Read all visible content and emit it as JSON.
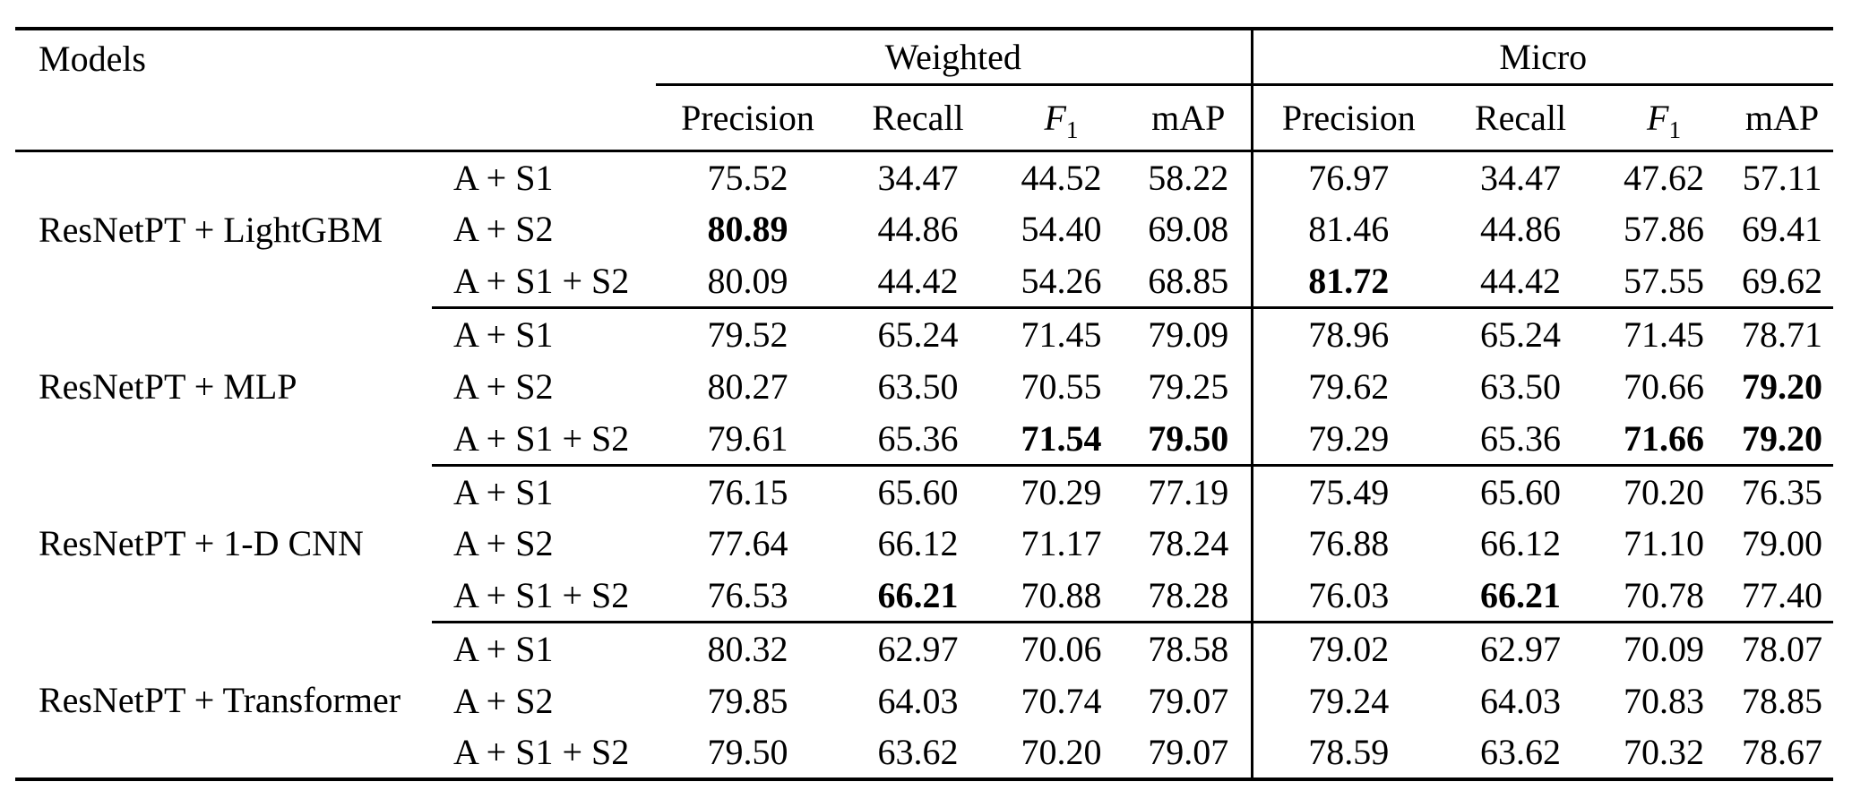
{
  "table": {
    "models_header": "Models",
    "groups": [
      {
        "label": "Weighted"
      },
      {
        "label": "Micro"
      }
    ],
    "metrics": [
      {
        "label": "Precision"
      },
      {
        "label": "Recall"
      },
      {
        "label": "F",
        "sub": "1"
      },
      {
        "label": "mAP"
      }
    ],
    "blocks": [
      {
        "model": "ResNetPT + LightGBM",
        "rows": [
          {
            "selector": "A + S1",
            "weighted": [
              {
                "v": "75.52"
              },
              {
                "v": "34.47"
              },
              {
                "v": "44.52"
              },
              {
                "v": "58.22"
              }
            ],
            "micro": [
              {
                "v": "76.97"
              },
              {
                "v": "34.47"
              },
              {
                "v": "47.62"
              },
              {
                "v": "57.11"
              }
            ]
          },
          {
            "selector": "A + S2",
            "weighted": [
              {
                "v": "80.89",
                "b": true
              },
              {
                "v": "44.86"
              },
              {
                "v": "54.40"
              },
              {
                "v": "69.08"
              }
            ],
            "micro": [
              {
                "v": "81.46"
              },
              {
                "v": "44.86"
              },
              {
                "v": "57.86"
              },
              {
                "v": "69.41"
              }
            ]
          },
          {
            "selector": "A + S1 + S2",
            "weighted": [
              {
                "v": "80.09"
              },
              {
                "v": "44.42"
              },
              {
                "v": "54.26"
              },
              {
                "v": "68.85"
              }
            ],
            "micro": [
              {
                "v": "81.72",
                "b": true
              },
              {
                "v": "44.42"
              },
              {
                "v": "57.55"
              },
              {
                "v": "69.62"
              }
            ]
          }
        ]
      },
      {
        "model": "ResNetPT + MLP",
        "rows": [
          {
            "selector": "A + S1",
            "weighted": [
              {
                "v": "79.52"
              },
              {
                "v": "65.24"
              },
              {
                "v": "71.45"
              },
              {
                "v": "79.09"
              }
            ],
            "micro": [
              {
                "v": "78.96"
              },
              {
                "v": "65.24"
              },
              {
                "v": "71.45"
              },
              {
                "v": "78.71"
              }
            ]
          },
          {
            "selector": "A + S2",
            "weighted": [
              {
                "v": "80.27"
              },
              {
                "v": "63.50"
              },
              {
                "v": "70.55"
              },
              {
                "v": "79.25"
              }
            ],
            "micro": [
              {
                "v": "79.62"
              },
              {
                "v": "63.50"
              },
              {
                "v": "70.66"
              },
              {
                "v": "79.20",
                "b": true
              }
            ]
          },
          {
            "selector": "A + S1 + S2",
            "weighted": [
              {
                "v": "79.61"
              },
              {
                "v": "65.36"
              },
              {
                "v": "71.54",
                "b": true
              },
              {
                "v": "79.50",
                "b": true
              }
            ],
            "micro": [
              {
                "v": "79.29"
              },
              {
                "v": "65.36"
              },
              {
                "v": "71.66",
                "b": true
              },
              {
                "v": "79.20",
                "b": true
              }
            ]
          }
        ]
      },
      {
        "model": "ResNetPT + 1-D CNN",
        "rows": [
          {
            "selector": "A + S1",
            "weighted": [
              {
                "v": "76.15"
              },
              {
                "v": "65.60"
              },
              {
                "v": "70.29"
              },
              {
                "v": "77.19"
              }
            ],
            "micro": [
              {
                "v": "75.49"
              },
              {
                "v": "65.60"
              },
              {
                "v": "70.20"
              },
              {
                "v": "76.35"
              }
            ]
          },
          {
            "selector": "A + S2",
            "weighted": [
              {
                "v": "77.64"
              },
              {
                "v": "66.12"
              },
              {
                "v": "71.17"
              },
              {
                "v": "78.24"
              }
            ],
            "micro": [
              {
                "v": "76.88"
              },
              {
                "v": "66.12"
              },
              {
                "v": "71.10"
              },
              {
                "v": "79.00"
              }
            ]
          },
          {
            "selector": "A + S1 + S2",
            "weighted": [
              {
                "v": "76.53"
              },
              {
                "v": "66.21",
                "b": true
              },
              {
                "v": "70.88"
              },
              {
                "v": "78.28"
              }
            ],
            "micro": [
              {
                "v": "76.03"
              },
              {
                "v": "66.21",
                "b": true
              },
              {
                "v": "70.78"
              },
              {
                "v": "77.40"
              }
            ]
          }
        ]
      },
      {
        "model": "ResNetPT + Transformer",
        "rows": [
          {
            "selector": "A + S1",
            "weighted": [
              {
                "v": "80.32"
              },
              {
                "v": "62.97"
              },
              {
                "v": "70.06"
              },
              {
                "v": "78.58"
              }
            ],
            "micro": [
              {
                "v": "79.02"
              },
              {
                "v": "62.97"
              },
              {
                "v": "70.09"
              },
              {
                "v": "78.07"
              }
            ]
          },
          {
            "selector": "A + S2",
            "weighted": [
              {
                "v": "79.85"
              },
              {
                "v": "64.03"
              },
              {
                "v": "70.74"
              },
              {
                "v": "79.07"
              }
            ],
            "micro": [
              {
                "v": "79.24"
              },
              {
                "v": "64.03"
              },
              {
                "v": "70.83"
              },
              {
                "v": "78.85"
              }
            ]
          },
          {
            "selector": "A + S1 + S2",
            "weighted": [
              {
                "v": "79.50"
              },
              {
                "v": "63.62"
              },
              {
                "v": "70.20"
              },
              {
                "v": "79.07"
              }
            ],
            "micro": [
              {
                "v": "78.59"
              },
              {
                "v": "63.62"
              },
              {
                "v": "70.32"
              },
              {
                "v": "78.67"
              }
            ]
          }
        ]
      }
    ]
  }
}
